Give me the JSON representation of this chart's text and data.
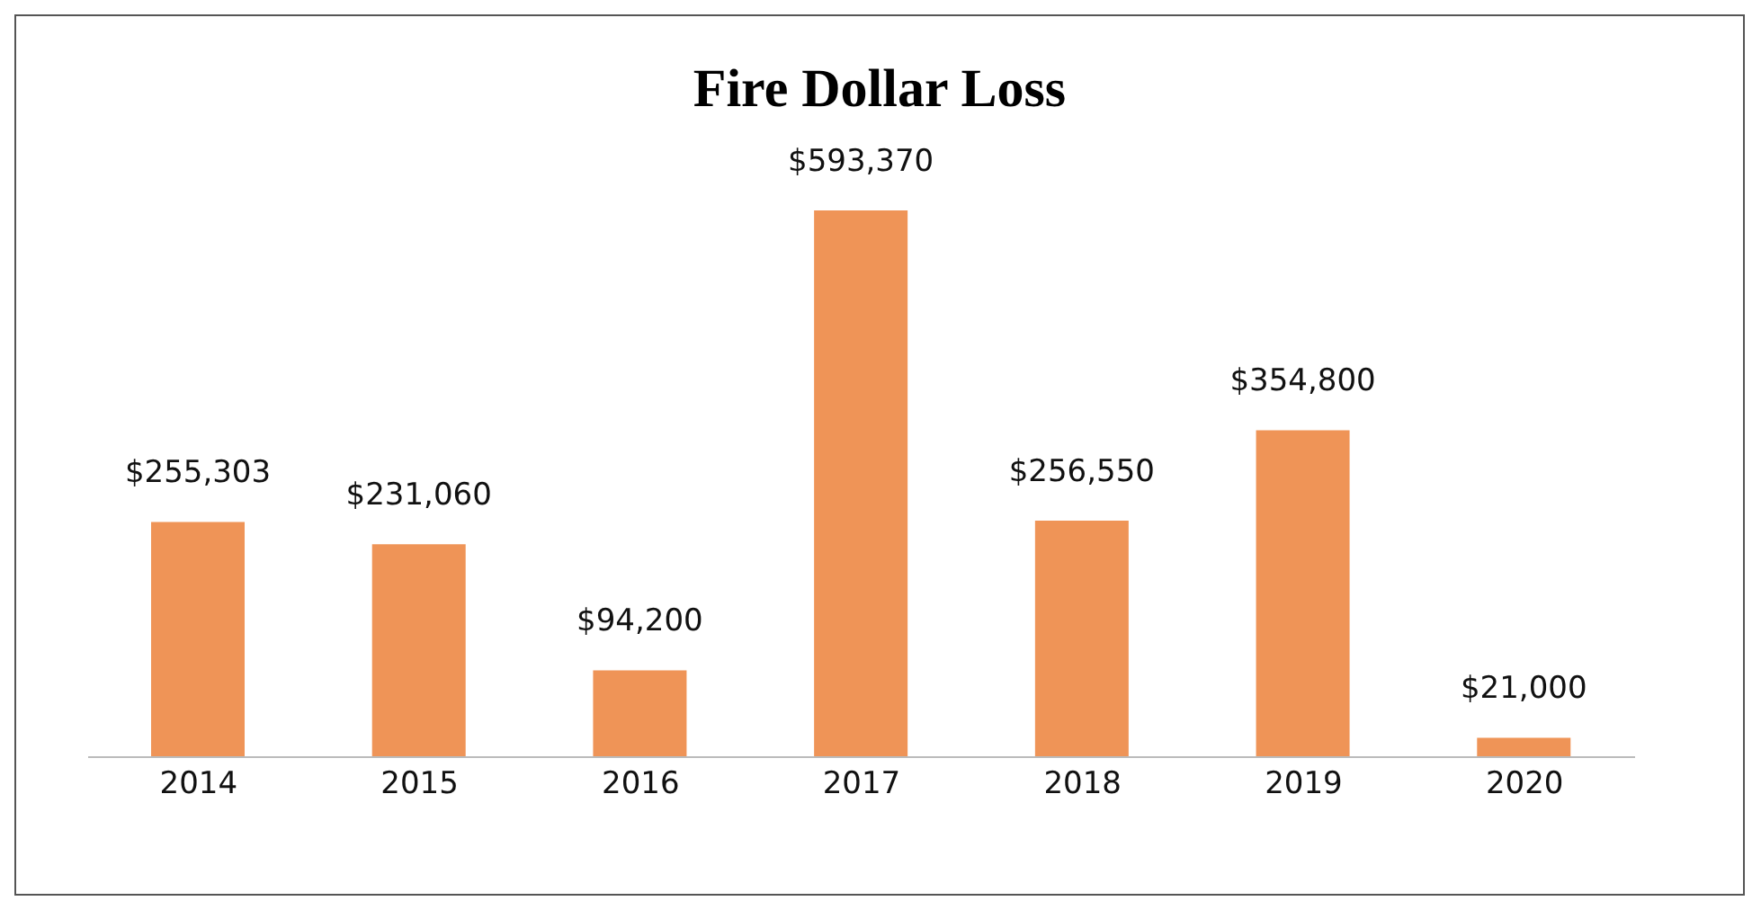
{
  "chart_data": {
    "type": "bar",
    "title": "Fire Dollar Loss",
    "categories": [
      "2014",
      "2015",
      "2016",
      "2017",
      "2018",
      "2019",
      "2020"
    ],
    "values": [
      255303,
      231060,
      94200,
      593370,
      256550,
      354800,
      21000
    ],
    "value_labels": [
      "$255,303",
      "$231,060",
      "$94,200",
      "$593,370",
      "$256,550",
      "$354,800",
      "$21,000"
    ],
    "color": "#ef9457"
  }
}
